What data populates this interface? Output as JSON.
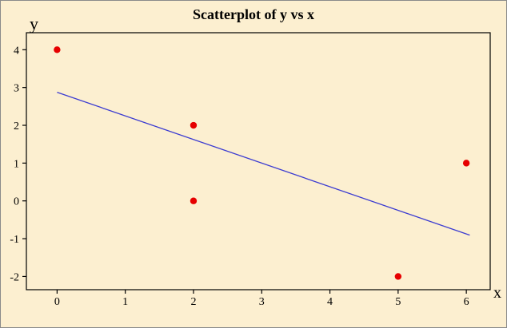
{
  "window": {
    "title": "Scatterplot of y vs x"
  },
  "chart_data": {
    "type": "scatter",
    "title": "Scatterplot of y vs x",
    "xlabel": "x",
    "ylabel": "y",
    "points": [
      [
        0,
        4
      ],
      [
        2,
        2
      ],
      [
        2,
        0
      ],
      [
        5,
        -2
      ],
      [
        6,
        1
      ]
    ],
    "fit_line": {
      "slope": -0.625,
      "intercept": 2.875,
      "x_start": 0,
      "x_end": 6.05
    },
    "xticks": [
      0,
      1,
      2,
      3,
      4,
      5,
      6
    ],
    "yticks": [
      -2,
      -1,
      0,
      1,
      2,
      3,
      4
    ],
    "xlim": [
      -0.45,
      6.35
    ],
    "ylim": [
      -2.35,
      4.45
    ],
    "grid": false,
    "legend": null,
    "colors": {
      "background": "#fcefd0",
      "plot_border": "#000000",
      "point": "#e60000",
      "line": "#3b3bd1",
      "text": "#000000"
    }
  }
}
